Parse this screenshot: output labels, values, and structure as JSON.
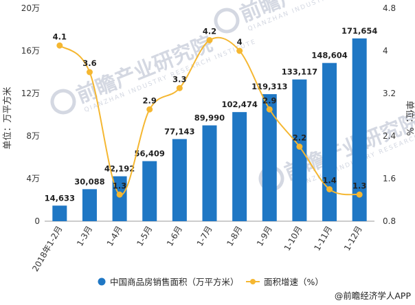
{
  "chart_data": {
    "type": "bar",
    "categories": [
      "2018年1-2月",
      "1-3月",
      "1-4月",
      "1-5月",
      "1-6月",
      "1-7月",
      "1-8月",
      "1-9月",
      "1-10月",
      "1-11月",
      "1-12月"
    ],
    "series": [
      {
        "name": "中国商品房销售面积（万平方米）",
        "type": "bar",
        "axis": "left",
        "values": [
          14633,
          30088,
          42192,
          56409,
          77143,
          89990,
          102474,
          119313,
          133117,
          148604,
          171654
        ],
        "labels": [
          "14,633",
          "30,088",
          "42,192",
          "56,409",
          "77,143",
          "89,990",
          "102,474",
          "119,313",
          "133,117",
          "148,604",
          "171,654"
        ],
        "color": "#1f77c4"
      },
      {
        "name": "面积增速（%）",
        "type": "line",
        "axis": "right",
        "values": [
          4.1,
          3.6,
          1.3,
          2.9,
          3.3,
          4.2,
          4,
          2.9,
          2.2,
          1.4,
          1.3
        ],
        "labels": [
          "4.1",
          "3.6",
          "1.3",
          "2.9",
          "3.3",
          "4.2",
          "4",
          "2.9",
          "2.2",
          "1.4",
          "1.3"
        ],
        "color": "#f5b731"
      }
    ],
    "left_axis": {
      "label": "单位：万平方米",
      "ylim": [
        0,
        200000
      ],
      "ticks": [
        0,
        40000,
        80000,
        120000,
        160000,
        200000
      ],
      "tick_labels": [
        "0",
        "4万",
        "8万",
        "12万",
        "16万",
        "20万"
      ]
    },
    "right_axis": {
      "label": "单位：%",
      "ylim": [
        0.8,
        4.8
      ],
      "ticks": [
        0.8,
        1.6,
        2.4,
        3.2,
        4.0,
        4.8
      ],
      "tick_labels": [
        "0.8",
        "1.6",
        "2.4",
        "3.2",
        "4",
        "4.8"
      ]
    },
    "legend": {
      "position": "bottom"
    },
    "grid": false
  },
  "watermark": {
    "text": "前瞻产业研究院",
    "subtext": "QIANZHAN INDUSTRY RESEARCH INSTITUTE"
  },
  "source": "@前瞻经济学人APP"
}
